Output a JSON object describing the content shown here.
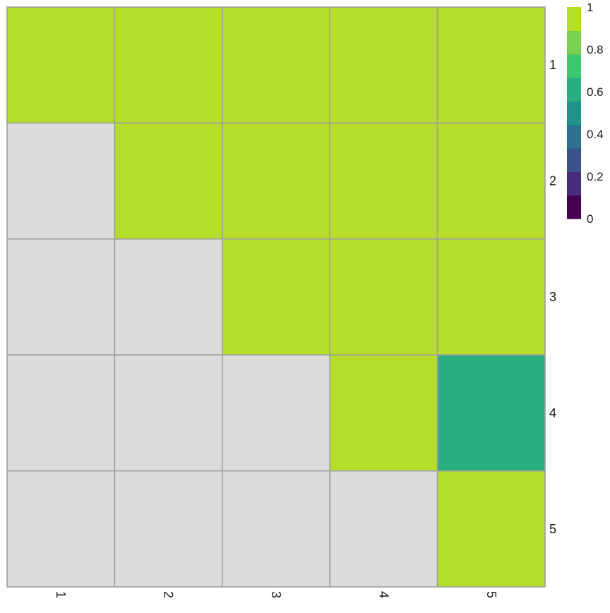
{
  "chart_data": {
    "type": "heatmap",
    "title": "",
    "xlabel": "",
    "ylabel": "",
    "x_categories": [
      "1",
      "2",
      "3",
      "4",
      "5"
    ],
    "y_categories": [
      "1",
      "2",
      "3",
      "4",
      "5"
    ],
    "values": [
      [
        1,
        1,
        1,
        1,
        1
      ],
      [
        null,
        1,
        1,
        1,
        1
      ],
      [
        null,
        null,
        1,
        1,
        1
      ],
      [
        null,
        null,
        null,
        1,
        0.6
      ],
      [
        null,
        null,
        null,
        null,
        1
      ]
    ],
    "missing_color": "#dcdcdc",
    "grid_color": "#9e9e9e",
    "colorbar": {
      "min": 0,
      "max": 1,
      "ticks": [
        "0",
        "0.2",
        "0.4",
        "0.6",
        "0.8",
        "1"
      ],
      "tick_values": [
        0,
        0.2,
        0.4,
        0.6,
        0.8,
        1
      ],
      "bins": 9,
      "colors": [
        "#440154",
        "#472d7b",
        "#3b528b",
        "#2c728e",
        "#21918c",
        "#28ae80",
        "#3fc671",
        "#7ad151",
        "#b5de2b"
      ]
    }
  }
}
